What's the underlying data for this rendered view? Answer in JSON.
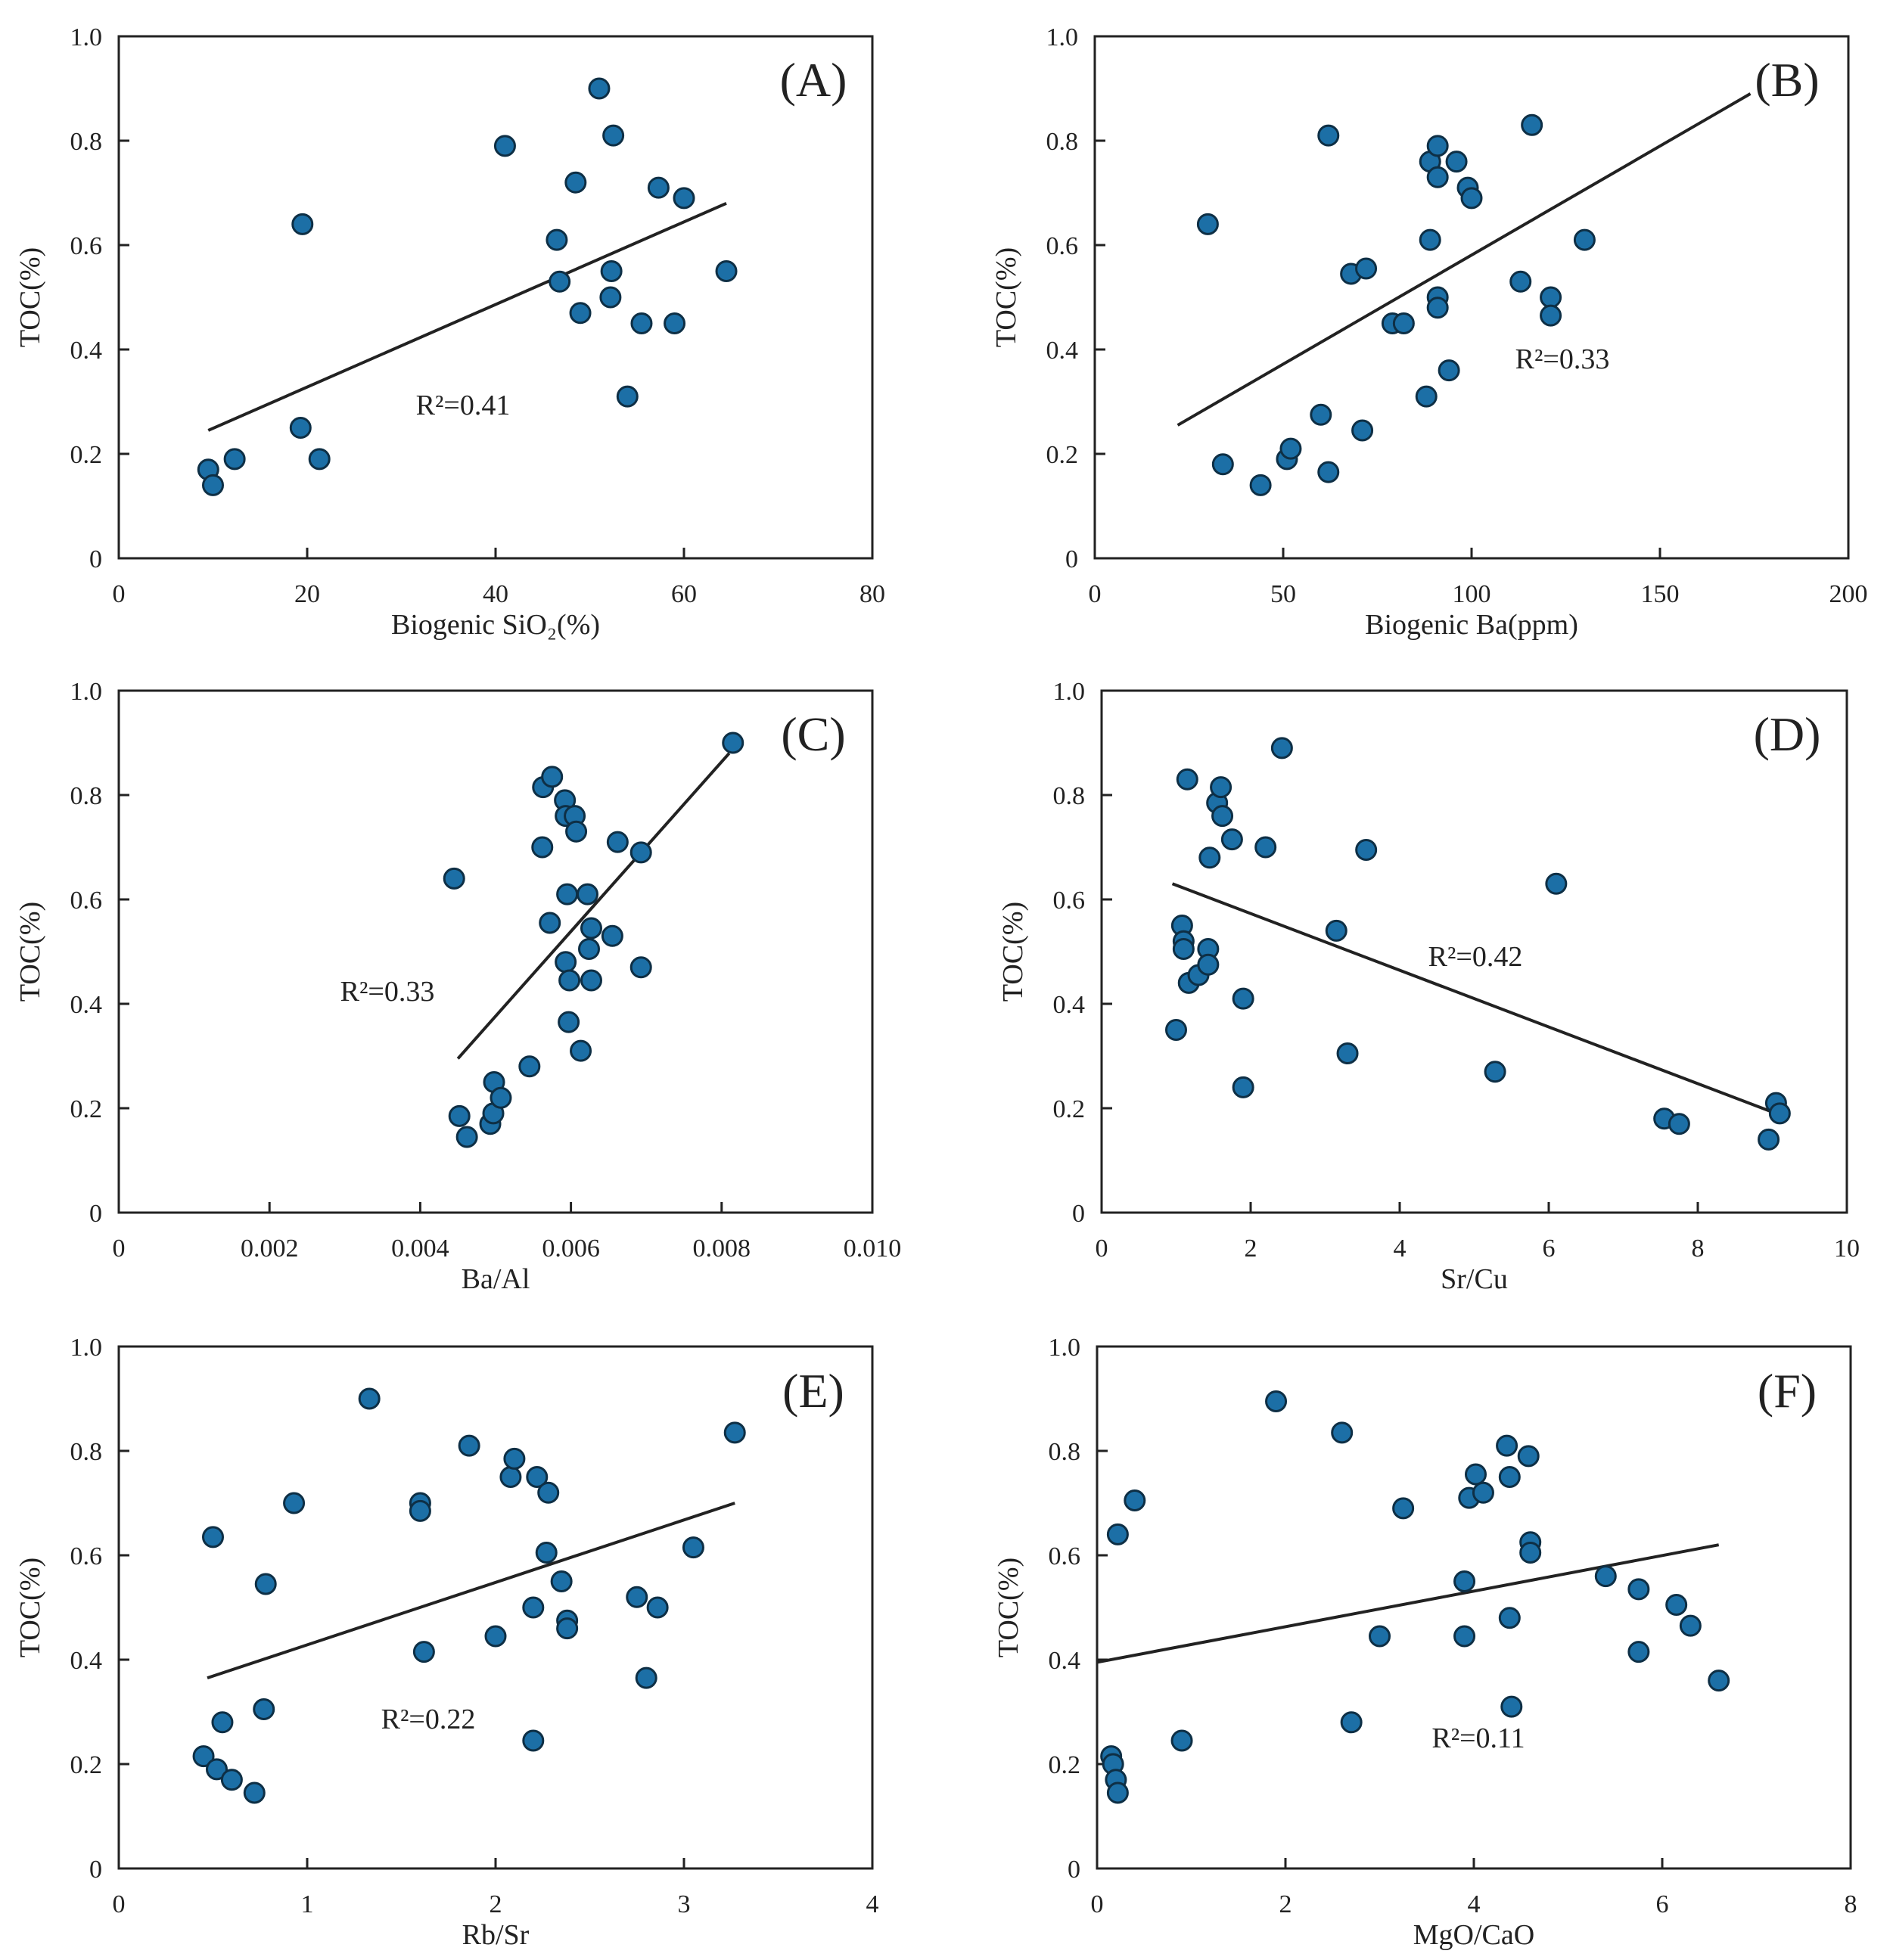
{
  "chart_data": [
    {
      "panel": "(A)",
      "type": "scatter",
      "xlabel": "Biogenic SiO₂(%)",
      "ylabel": "TOC(%)",
      "xlim": [
        0,
        80
      ],
      "ylim": [
        0,
        1.0
      ],
      "xticks": [
        "0",
        "20",
        "40",
        "60",
        "80"
      ],
      "yticks": [
        "0",
        "0.2",
        "0.4",
        "0.6",
        "0.8",
        "1.0"
      ],
      "r2_text": "R²=0.41",
      "trend": [
        [
          9.5,
          0.245
        ],
        [
          64.5,
          0.68
        ]
      ],
      "points": [
        [
          9.5,
          0.17
        ],
        [
          10,
          0.14
        ],
        [
          12.3,
          0.19
        ],
        [
          19.5,
          0.64
        ],
        [
          19.3,
          0.25
        ],
        [
          21.3,
          0.19
        ],
        [
          41,
          0.79
        ],
        [
          46.5,
          0.61
        ],
        [
          46.8,
          0.53
        ],
        [
          48.5,
          0.72
        ],
        [
          49,
          0.47
        ],
        [
          51,
          0.9
        ],
        [
          52.3,
          0.55
        ],
        [
          52.2,
          0.5
        ],
        [
          52.5,
          0.81
        ],
        [
          54,
          0.31
        ],
        [
          55.5,
          0.45
        ],
        [
          57.3,
          0.71
        ],
        [
          59,
          0.45
        ],
        [
          60,
          0.69
        ],
        [
          64.5,
          0.55
        ]
      ]
    },
    {
      "panel": "(B)",
      "type": "scatter",
      "xlabel": "Biogenic Ba(ppm)",
      "ylabel": "TOC(%)",
      "xlim": [
        0,
        200
      ],
      "ylim": [
        0,
        1.0
      ],
      "xticks": [
        "0",
        "50",
        "100",
        "150",
        "200"
      ],
      "yticks": [
        "0",
        "0.2",
        "0.4",
        "0.6",
        "0.8",
        "1.0"
      ],
      "r2_text": "R²=0.33",
      "trend": [
        [
          22,
          0.255
        ],
        [
          174,
          0.89
        ]
      ],
      "points": [
        [
          30,
          0.64
        ],
        [
          34,
          0.18
        ],
        [
          44,
          0.14
        ],
        [
          51,
          0.19
        ],
        [
          52,
          0.21
        ],
        [
          60,
          0.275
        ],
        [
          62,
          0.81
        ],
        [
          62,
          0.165
        ],
        [
          68,
          0.545
        ],
        [
          71,
          0.245
        ],
        [
          72,
          0.555
        ],
        [
          79,
          0.45
        ],
        [
          82,
          0.45
        ],
        [
          88,
          0.31
        ],
        [
          89,
          0.76
        ],
        [
          89,
          0.61
        ],
        [
          91,
          0.79
        ],
        [
          91,
          0.73
        ],
        [
          91,
          0.5
        ],
        [
          91,
          0.48
        ],
        [
          94,
          0.36
        ],
        [
          96,
          0.76
        ],
        [
          99,
          0.71
        ],
        [
          100,
          0.69
        ],
        [
          113,
          0.53
        ],
        [
          116,
          0.83
        ],
        [
          121,
          0.5
        ],
        [
          121,
          0.465
        ],
        [
          130,
          0.61
        ]
      ]
    },
    {
      "panel": "(C)",
      "type": "scatter",
      "xlabel": "Ba/Al",
      "ylabel": "TOC(%)",
      "xlim": [
        0,
        0.01
      ],
      "ylim": [
        0,
        1.0
      ],
      "xticks": [
        "0",
        "0.002",
        "0.004",
        "0.006",
        "0.008",
        "0.010"
      ],
      "yticks": [
        "0",
        "0.2",
        "0.4",
        "0.6",
        "0.8",
        "1.0"
      ],
      "r2_text": "R²=0.33",
      "trend": [
        [
          0.0045,
          0.295
        ],
        [
          0.0081,
          0.88
        ]
      ],
      "points": [
        [
          0.00445,
          0.64
        ],
        [
          0.00452,
          0.185
        ],
        [
          0.00462,
          0.145
        ],
        [
          0.00493,
          0.17
        ],
        [
          0.00497,
          0.19
        ],
        [
          0.00498,
          0.25
        ],
        [
          0.00507,
          0.22
        ],
        [
          0.00545,
          0.28
        ],
        [
          0.00562,
          0.7
        ],
        [
          0.00563,
          0.815
        ],
        [
          0.00572,
          0.555
        ],
        [
          0.00575,
          0.835
        ],
        [
          0.00592,
          0.79
        ],
        [
          0.00593,
          0.76
        ],
        [
          0.00593,
          0.48
        ],
        [
          0.00595,
          0.61
        ],
        [
          0.00597,
          0.365
        ],
        [
          0.00598,
          0.445
        ],
        [
          0.00605,
          0.76
        ],
        [
          0.00607,
          0.73
        ],
        [
          0.00613,
          0.31
        ],
        [
          0.00622,
          0.61
        ],
        [
          0.00624,
          0.505
        ],
        [
          0.00627,
          0.545
        ],
        [
          0.00627,
          0.445
        ],
        [
          0.00655,
          0.53
        ],
        [
          0.00662,
          0.71
        ],
        [
          0.00693,
          0.69
        ],
        [
          0.00693,
          0.47
        ],
        [
          0.00815,
          0.9
        ]
      ]
    },
    {
      "panel": "(D)",
      "type": "scatter",
      "xlabel": "Sr/Cu",
      "ylabel": "TOC(%)",
      "xlim": [
        0,
        10
      ],
      "ylim": [
        0,
        1.0
      ],
      "xticks": [
        "0",
        "2",
        "4",
        "6",
        "8",
        "10"
      ],
      "yticks": [
        "0",
        "0.2",
        "0.4",
        "0.6",
        "0.8",
        "1.0"
      ],
      "r2_text": "R²=0.42",
      "trend": [
        [
          0.95,
          0.63
        ],
        [
          9.05,
          0.19
        ]
      ],
      "points": [
        [
          1.0,
          0.35
        ],
        [
          1.08,
          0.55
        ],
        [
          1.1,
          0.52
        ],
        [
          1.1,
          0.505
        ],
        [
          1.15,
          0.83
        ],
        [
          1.17,
          0.44
        ],
        [
          1.3,
          0.455
        ],
        [
          1.43,
          0.505
        ],
        [
          1.43,
          0.475
        ],
        [
          1.45,
          0.68
        ],
        [
          1.55,
          0.785
        ],
        [
          1.6,
          0.815
        ],
        [
          1.62,
          0.76
        ],
        [
          1.75,
          0.715
        ],
        [
          1.9,
          0.41
        ],
        [
          1.9,
          0.24
        ],
        [
          2.2,
          0.7
        ],
        [
          2.42,
          0.89
        ],
        [
          3.15,
          0.54
        ],
        [
          3.3,
          0.305
        ],
        [
          3.55,
          0.695
        ],
        [
          5.28,
          0.27
        ],
        [
          6.1,
          0.63
        ],
        [
          7.55,
          0.18
        ],
        [
          7.75,
          0.17
        ],
        [
          8.95,
          0.14
        ],
        [
          9.05,
          0.21
        ],
        [
          9.1,
          0.19
        ]
      ]
    },
    {
      "panel": "(E)",
      "type": "scatter",
      "xlabel": "Rb/Sr",
      "ylabel": "TOC(%)",
      "xlim": [
        0,
        4
      ],
      "ylim": [
        0,
        1.0
      ],
      "xticks": [
        "0",
        "1",
        "2",
        "3",
        "4"
      ],
      "yticks": [
        "0",
        "0.2",
        "0.4",
        "0.6",
        "0.8",
        "1.0"
      ],
      "r2_text": "R²=0.22",
      "trend": [
        [
          0.47,
          0.365
        ],
        [
          3.27,
          0.7
        ]
      ],
      "points": [
        [
          0.45,
          0.215
        ],
        [
          0.5,
          0.635
        ],
        [
          0.52,
          0.19
        ],
        [
          0.55,
          0.28
        ],
        [
          0.6,
          0.17
        ],
        [
          0.72,
          0.145
        ],
        [
          0.77,
          0.305
        ],
        [
          0.78,
          0.545
        ],
        [
          0.93,
          0.7
        ],
        [
          1.33,
          0.9
        ],
        [
          1.6,
          0.7
        ],
        [
          1.6,
          0.685
        ],
        [
          1.62,
          0.415
        ],
        [
          1.86,
          0.81
        ],
        [
          2.0,
          0.445
        ],
        [
          2.08,
          0.75
        ],
        [
          2.1,
          0.785
        ],
        [
          2.2,
          0.5
        ],
        [
          2.2,
          0.245
        ],
        [
          2.22,
          0.75
        ],
        [
          2.27,
          0.605
        ],
        [
          2.28,
          0.72
        ],
        [
          2.35,
          0.55
        ],
        [
          2.38,
          0.475
        ],
        [
          2.38,
          0.46
        ],
        [
          2.75,
          0.52
        ],
        [
          2.8,
          0.365
        ],
        [
          2.86,
          0.5
        ],
        [
          3.05,
          0.615
        ],
        [
          3.27,
          0.835
        ]
      ]
    },
    {
      "panel": "(F)",
      "type": "scatter",
      "xlabel": "MgO/CaO",
      "ylabel": "TOC(%)",
      "xlim": [
        0,
        8
      ],
      "ylim": [
        0,
        1.0
      ],
      "xticks": [
        "0",
        "2",
        "4",
        "6",
        "8"
      ],
      "yticks": [
        "0",
        "0.2",
        "0.4",
        "0.6",
        "0.8",
        "1.0"
      ],
      "r2_text": "R²=0.11",
      "trend": [
        [
          0,
          0.395
        ],
        [
          6.6,
          0.62
        ]
      ],
      "points": [
        [
          0.15,
          0.215
        ],
        [
          0.17,
          0.2
        ],
        [
          0.2,
          0.17
        ],
        [
          0.22,
          0.145
        ],
        [
          0.22,
          0.64
        ],
        [
          0.4,
          0.705
        ],
        [
          0.9,
          0.245
        ],
        [
          1.9,
          0.895
        ],
        [
          2.6,
          0.835
        ],
        [
          2.7,
          0.28
        ],
        [
          3.0,
          0.445
        ],
        [
          3.25,
          0.69
        ],
        [
          3.9,
          0.55
        ],
        [
          3.9,
          0.445
        ],
        [
          3.95,
          0.71
        ],
        [
          4.02,
          0.755
        ],
        [
          4.1,
          0.72
        ],
        [
          4.35,
          0.81
        ],
        [
          4.38,
          0.75
        ],
        [
          4.38,
          0.48
        ],
        [
          4.4,
          0.31
        ],
        [
          4.58,
          0.79
        ],
        [
          4.6,
          0.625
        ],
        [
          4.6,
          0.605
        ],
        [
          5.4,
          0.56
        ],
        [
          5.75,
          0.535
        ],
        [
          5.75,
          0.415
        ],
        [
          6.15,
          0.505
        ],
        [
          6.3,
          0.465
        ],
        [
          6.6,
          0.36
        ]
      ]
    }
  ]
}
